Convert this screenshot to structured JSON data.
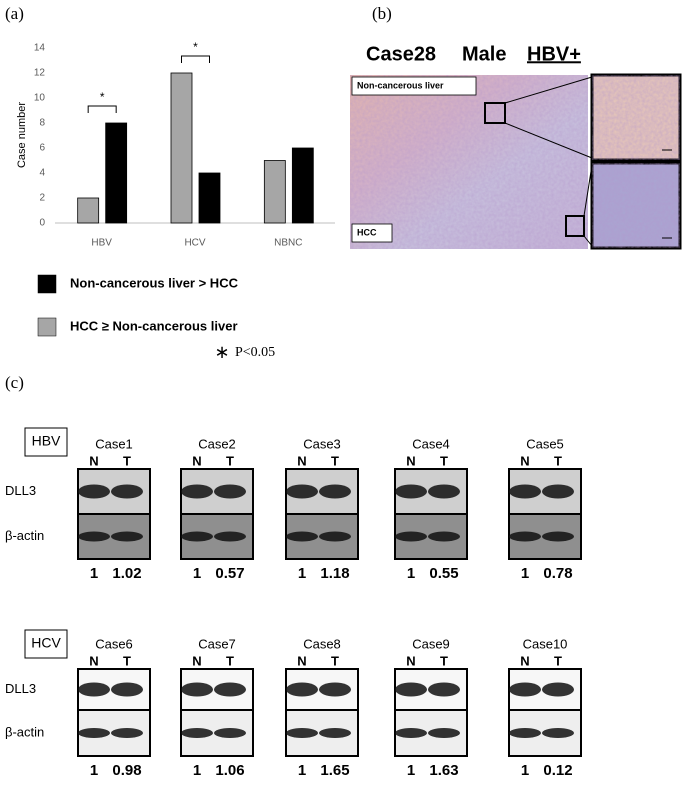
{
  "panel_labels": [
    "(a)",
    "(b)",
    "(c)"
  ],
  "chart_data": {
    "type": "bar",
    "y_label": "Case number",
    "categories": [
      "HBV",
      "HCV",
      "NBNC"
    ],
    "series": [
      {
        "name": "HCC ≥ Non-cancerous liver",
        "color": "#a6a6a6",
        "values": [
          2,
          12,
          5
        ]
      },
      {
        "name": "Non-cancerous liver > HCC",
        "color": "#000000",
        "values": [
          8,
          4,
          6
        ]
      }
    ],
    "ylim": [
      0,
      14
    ],
    "yticks": [
      0,
      2,
      4,
      6,
      8,
      10,
      12,
      14
    ],
    "grid": false,
    "legend_order": [
      1,
      0
    ],
    "annotations": [
      {
        "text": "*",
        "category": 0
      },
      {
        "text": "*",
        "category": 1
      }
    ],
    "significance": {
      "symbol": "∗",
      "label": "P<0.05"
    }
  },
  "histology": {
    "case": "Case28",
    "sex": "Male",
    "virus": "HBV+",
    "labels": [
      "Non-cancerous liver",
      "HCC"
    ]
  },
  "blots": {
    "lanes": [
      "N",
      "T"
    ],
    "rows": [
      "DLL3",
      "β-actin"
    ],
    "groups": [
      {
        "name": "HBV",
        "cases": [
          {
            "name": "Case1",
            "ratios": [
              1,
              1.02
            ]
          },
          {
            "name": "Case2",
            "ratios": [
              1,
              0.57
            ]
          },
          {
            "name": "Case3",
            "ratios": [
              1,
              1.18
            ]
          },
          {
            "name": "Case4",
            "ratios": [
              1,
              0.55
            ]
          },
          {
            "name": "Case5",
            "ratios": [
              1,
              0.78
            ]
          }
        ]
      },
      {
        "name": "HCV",
        "cases": [
          {
            "name": "Case6",
            "ratios": [
              1,
              0.98
            ]
          },
          {
            "name": "Case7",
            "ratios": [
              1,
              1.06
            ]
          },
          {
            "name": "Case8",
            "ratios": [
              1,
              1.65
            ]
          },
          {
            "name": "Case9",
            "ratios": [
              1,
              1.63
            ]
          },
          {
            "name": "Case10",
            "ratios": [
              1,
              0.12
            ]
          }
        ]
      }
    ]
  }
}
